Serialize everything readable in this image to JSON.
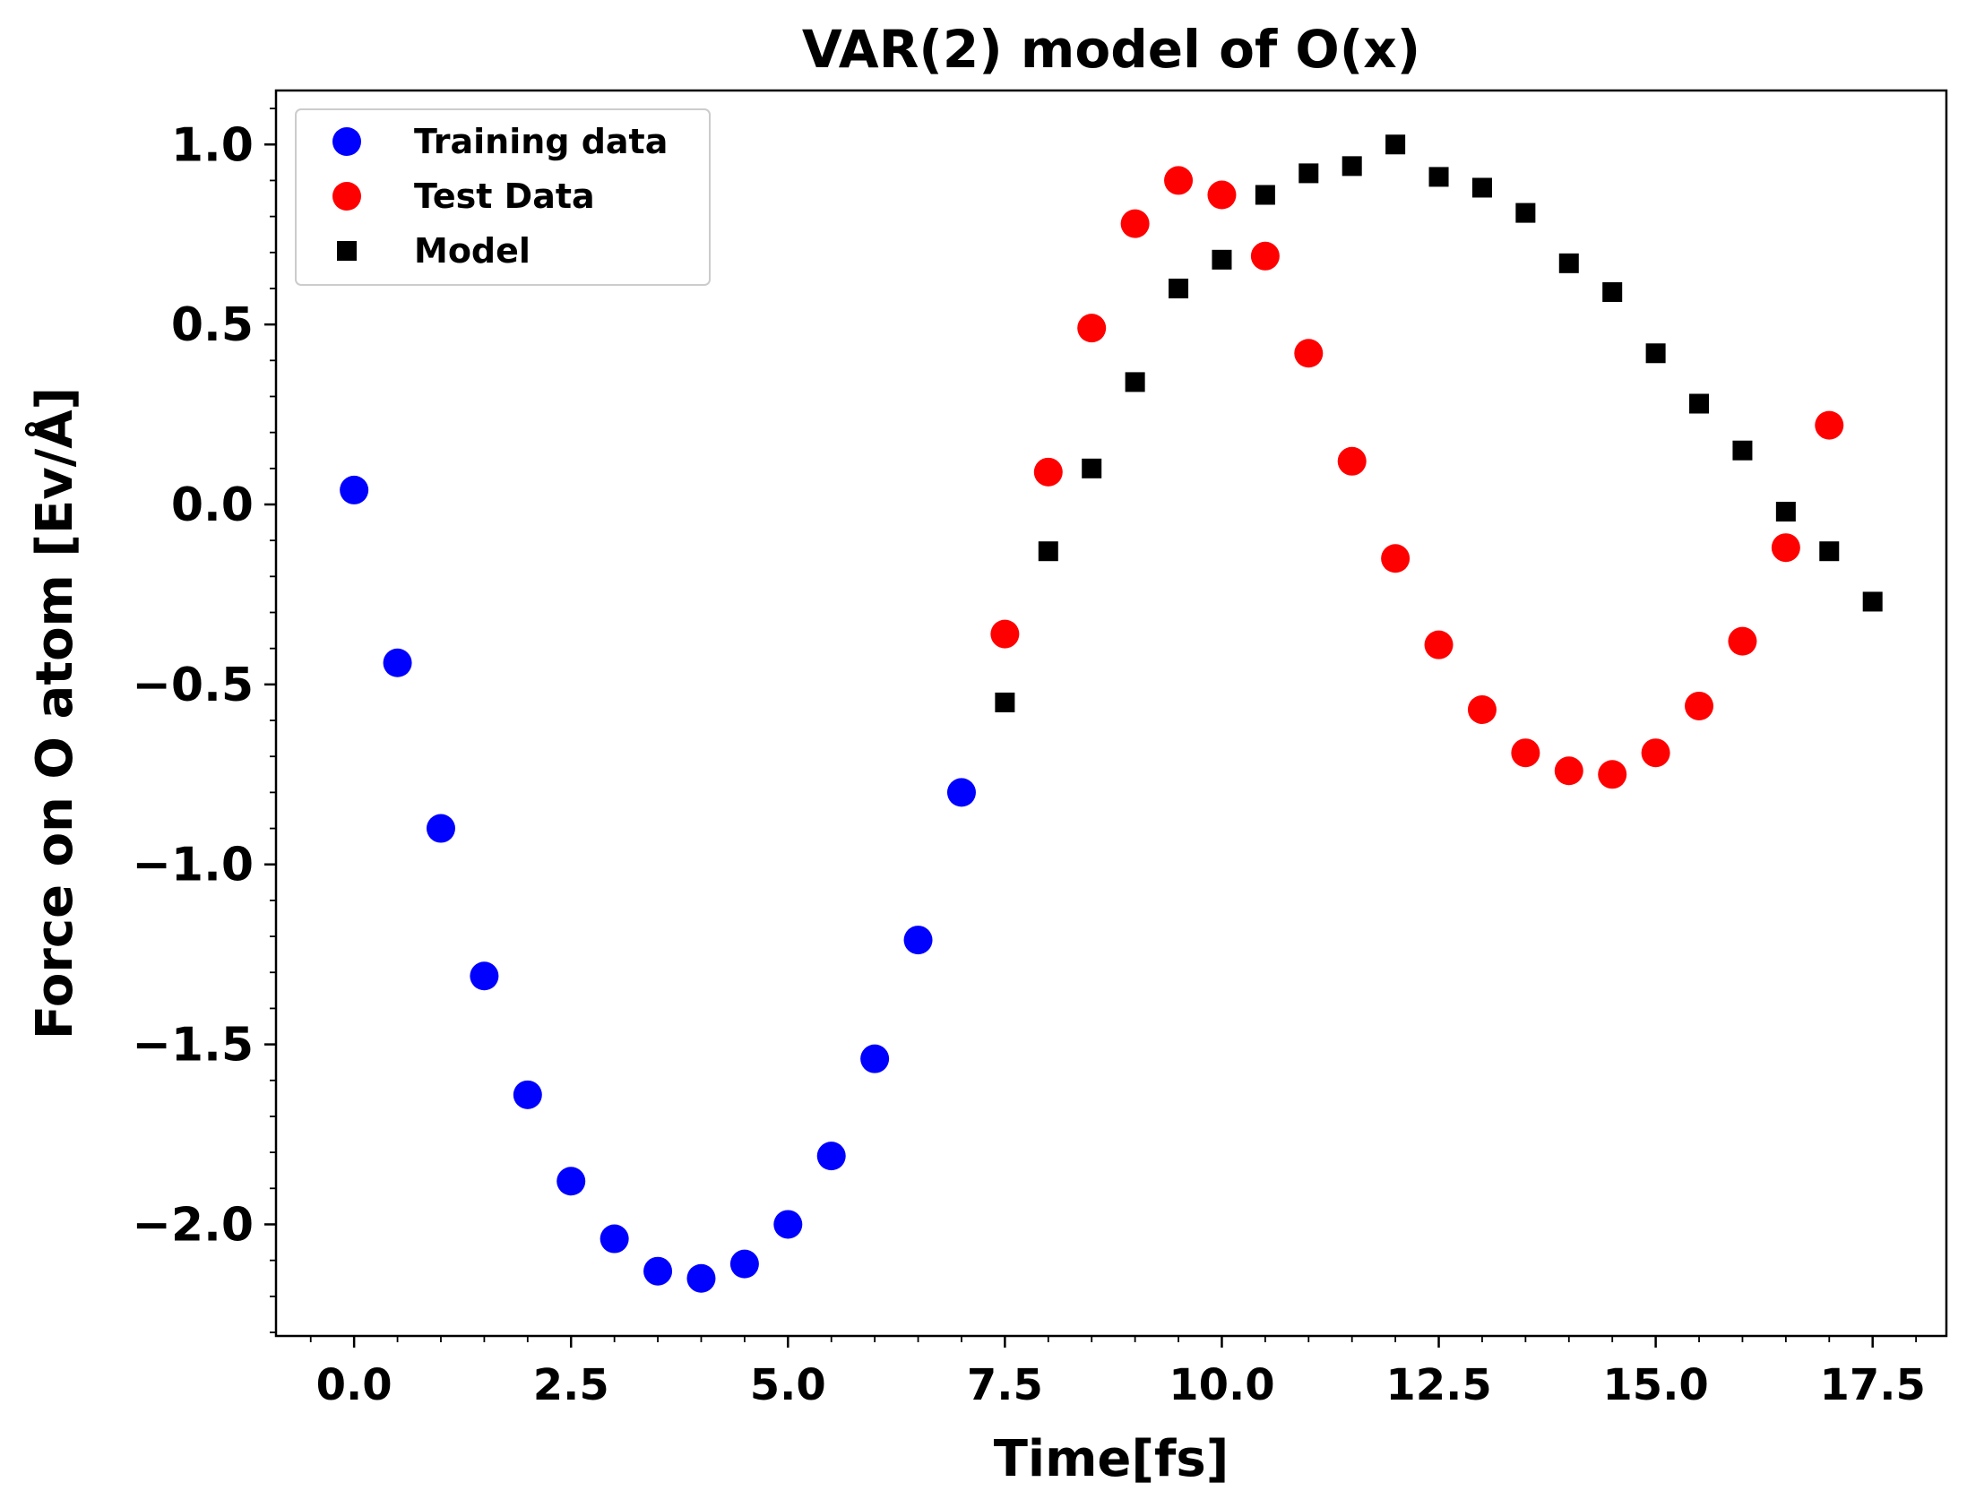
{
  "chart_data": {
    "type": "scatter",
    "title": "VAR(2) model of O(x)",
    "xlabel": "Time[fs]",
    "ylabel": "Force on O atom [Ev/Å]",
    "xlim": [
      -0.9,
      18.35
    ],
    "ylim": [
      -2.31,
      1.15
    ],
    "x_ticks": [
      0.0,
      2.5,
      5.0,
      7.5,
      10.0,
      12.5,
      15.0,
      17.5
    ],
    "x_tick_labels": [
      "0.0",
      "2.5",
      "5.0",
      "7.5",
      "10.0",
      "12.5",
      "15.0",
      "17.5"
    ],
    "y_ticks": [
      1.0,
      0.5,
      0.0,
      -0.5,
      -1.0,
      -1.5,
      -2.0
    ],
    "y_tick_labels": [
      "1.0",
      "0.5",
      "0.0",
      "−0.5",
      "−1.0",
      "−1.5",
      "−2.0"
    ],
    "legend_position": "top-left",
    "grid": false,
    "series": [
      {
        "name": "Training data",
        "marker": "circle",
        "color": "#0000ff",
        "points": [
          [
            0.0,
            0.04
          ],
          [
            0.5,
            -0.44
          ],
          [
            1.0,
            -0.9
          ],
          [
            1.5,
            -1.31
          ],
          [
            2.0,
            -1.64
          ],
          [
            2.5,
            -1.88
          ],
          [
            3.0,
            -2.04
          ],
          [
            3.5,
            -2.13
          ],
          [
            4.0,
            -2.15
          ],
          [
            4.5,
            -2.11
          ],
          [
            5.0,
            -2.0
          ],
          [
            5.5,
            -1.81
          ],
          [
            6.0,
            -1.54
          ],
          [
            6.5,
            -1.21
          ],
          [
            7.0,
            -0.8
          ]
        ]
      },
      {
        "name": "Test Data",
        "marker": "circle",
        "color": "#ff0000",
        "points": [
          [
            7.5,
            -0.36
          ],
          [
            8.0,
            0.09
          ],
          [
            8.5,
            0.49
          ],
          [
            9.0,
            0.78
          ],
          [
            9.5,
            0.9
          ],
          [
            10.0,
            0.86
          ],
          [
            10.5,
            0.69
          ],
          [
            11.0,
            0.42
          ],
          [
            11.5,
            0.12
          ],
          [
            12.0,
            -0.15
          ],
          [
            12.5,
            -0.39
          ],
          [
            13.0,
            -0.57
          ],
          [
            13.5,
            -0.69
          ],
          [
            14.0,
            -0.74
          ],
          [
            14.5,
            -0.75
          ],
          [
            15.0,
            -0.69
          ],
          [
            15.5,
            -0.56
          ],
          [
            16.0,
            -0.38
          ],
          [
            16.5,
            -0.12
          ],
          [
            17.0,
            0.22
          ]
        ]
      },
      {
        "name": "Model",
        "marker": "square",
        "color": "#000000",
        "points": [
          [
            7.5,
            -0.55
          ],
          [
            8.0,
            -0.13
          ],
          [
            8.5,
            0.1
          ],
          [
            9.0,
            0.34
          ],
          [
            9.5,
            0.6
          ],
          [
            10.0,
            0.68
          ],
          [
            10.5,
            0.86
          ],
          [
            11.0,
            0.92
          ],
          [
            11.5,
            0.94
          ],
          [
            12.0,
            1.0
          ],
          [
            12.5,
            0.91
          ],
          [
            13.0,
            0.88
          ],
          [
            13.5,
            0.81
          ],
          [
            14.0,
            0.67
          ],
          [
            14.5,
            0.59
          ],
          [
            15.0,
            0.42
          ],
          [
            15.5,
            0.28
          ],
          [
            16.0,
            0.15
          ],
          [
            16.5,
            -0.02
          ],
          [
            17.0,
            -0.13
          ],
          [
            17.5,
            -0.27
          ]
        ]
      }
    ]
  }
}
